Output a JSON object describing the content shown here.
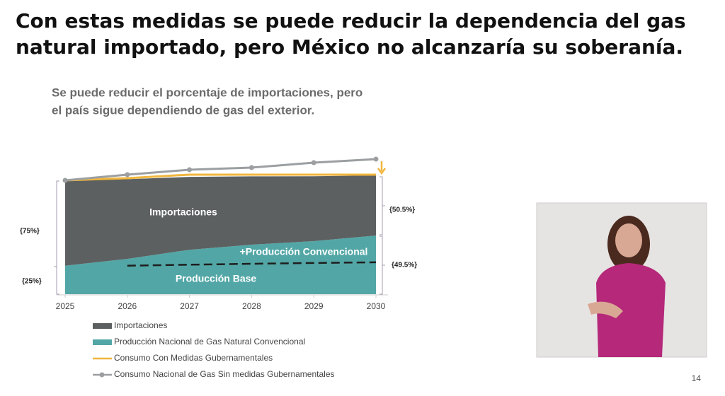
{
  "slide": {
    "title_lines": [
      "Con estas medidas se puede reducir la dependencia del gas",
      "natural importado, pero México no alcanzaría su soberanía."
    ],
    "page_number": "14"
  },
  "chart_data": {
    "type": "stacked-area",
    "title_lines": [
      "Se puede reducir el porcentaje de importaciones, pero",
      "el país sigue dependiendo de gas del exterior."
    ],
    "x": [
      2025,
      2026,
      2027,
      2028,
      2029,
      2030
    ],
    "xlim": [
      2025,
      2030
    ],
    "series": [
      {
        "name": "Importaciones",
        "color": "#5c6061",
        "kind": "area",
        "values": [
          75,
          70,
          64,
          60,
          57,
          52.8
        ]
      },
      {
        "name": "Producción Nacional de Gas Natural Convencional",
        "color": "#52a7a6",
        "kind": "area",
        "values": [
          25,
          31,
          39,
          43.5,
          46.6,
          51.5
        ]
      },
      {
        "name": "Consumo Con Medidas Gubernamentales",
        "color": "#f0b63e",
        "kind": "line",
        "values": [
          100,
          101.9,
          105,
          105,
          105,
          105
        ]
      },
      {
        "name": "Consumo Nacional de Gas Sin medidas Gubernamentales",
        "color": "#9b9fa1",
        "kind": "line-markers",
        "values": [
          100,
          105,
          109.3,
          111.2,
          115.5,
          118.6
        ]
      }
    ],
    "base_production_line": {
      "color": "#1e1e1e",
      "values": [
        null,
        25,
        25.9,
        26.7,
        27.4,
        28
      ]
    },
    "annotations": [
      "Importaciones",
      "+Producción Convencional",
      "Producción Base",
      "{75%}",
      "{25%}",
      "{50.5%}",
      "{49.5%}"
    ]
  }
}
